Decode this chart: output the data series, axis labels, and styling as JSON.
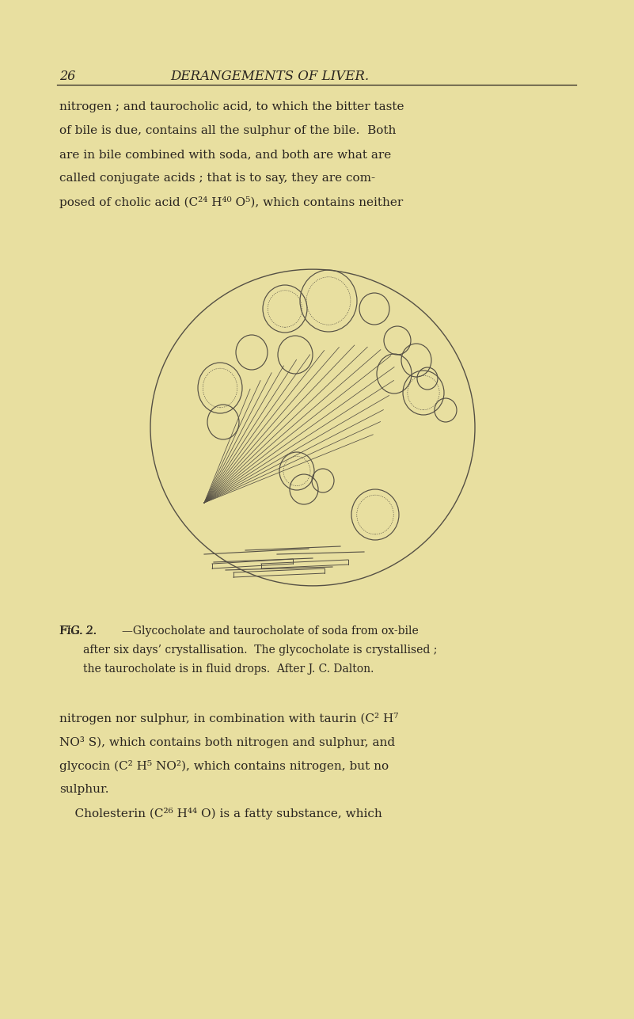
{
  "background_color": "#e8dfa0",
  "text_color": "#2a2520",
  "line_color": "#555045",
  "circle_edge_color": "#555045",
  "page_number": "26",
  "header_title": "DERANGEMENTS OF LIVER.",
  "lines1": [
    "nitrogen ; and taurocholic acid, to which the bitter taste",
    "of bile is due, contains all the sulphur of the bile.  Both",
    "are in bile combined with soda, and both are what are",
    "called conjugate acids ; that is to say, they are com-",
    "posed of cholic acid (C²⁴ H⁴⁰ O⁵), which contains neither"
  ],
  "lines2": [
    "nitrogen nor sulphur, in combination with taurin (C² H⁷",
    "NO³ S), which contains both nitrogen and sulphur, and",
    "glycocin (C² H⁵ NO²), which contains nitrogen, but no",
    "sulphur."
  ],
  "line3": "    Cholesterin (C²⁶ H⁴⁴ O) is a fatty substance, which"
}
